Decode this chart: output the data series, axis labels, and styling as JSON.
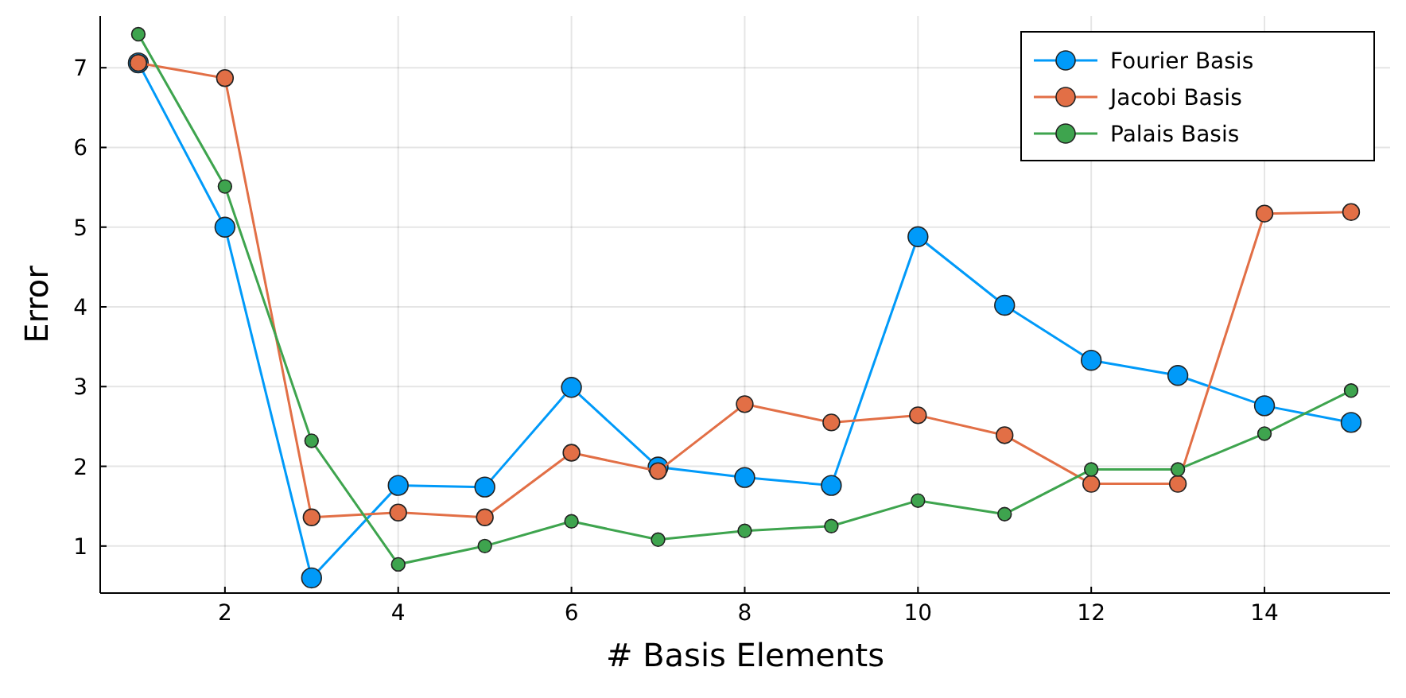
{
  "chart_data": {
    "type": "line",
    "xlabel": "# Basis Elements",
    "ylabel": "Error",
    "x": [
      1,
      2,
      3,
      4,
      5,
      6,
      7,
      8,
      9,
      10,
      11,
      12,
      13,
      14,
      15
    ],
    "xlim": [
      0.56,
      15.45
    ],
    "ylim": [
      0.41,
      7.65
    ],
    "xticks": [
      2,
      4,
      6,
      8,
      10,
      12,
      14
    ],
    "yticks": [
      1,
      2,
      3,
      4,
      5,
      6,
      7
    ],
    "grid": true,
    "legend": "top right",
    "marker": "circle",
    "line_style": "solid",
    "series": [
      {
        "name": "Fourier Basis",
        "color": "#009af9",
        "values": [
          7.06,
          5.0,
          0.6,
          1.76,
          1.74,
          2.99,
          1.99,
          1.86,
          1.76,
          4.88,
          4.02,
          3.33,
          3.14,
          2.76,
          2.55
        ]
      },
      {
        "name": "Jacobi Basis",
        "color": "#e26f46",
        "values": [
          7.06,
          6.87,
          1.36,
          1.42,
          1.36,
          2.17,
          1.94,
          2.78,
          2.55,
          2.64,
          2.39,
          1.78,
          1.78,
          5.17,
          5.19
        ]
      },
      {
        "name": "Palais Basis",
        "color": "#3ea44e",
        "values": [
          7.42,
          5.51,
          2.32,
          0.77,
          1.0,
          1.31,
          1.08,
          1.19,
          1.25,
          1.57,
          1.4,
          1.96,
          1.96,
          2.41,
          2.95
        ]
      }
    ]
  }
}
